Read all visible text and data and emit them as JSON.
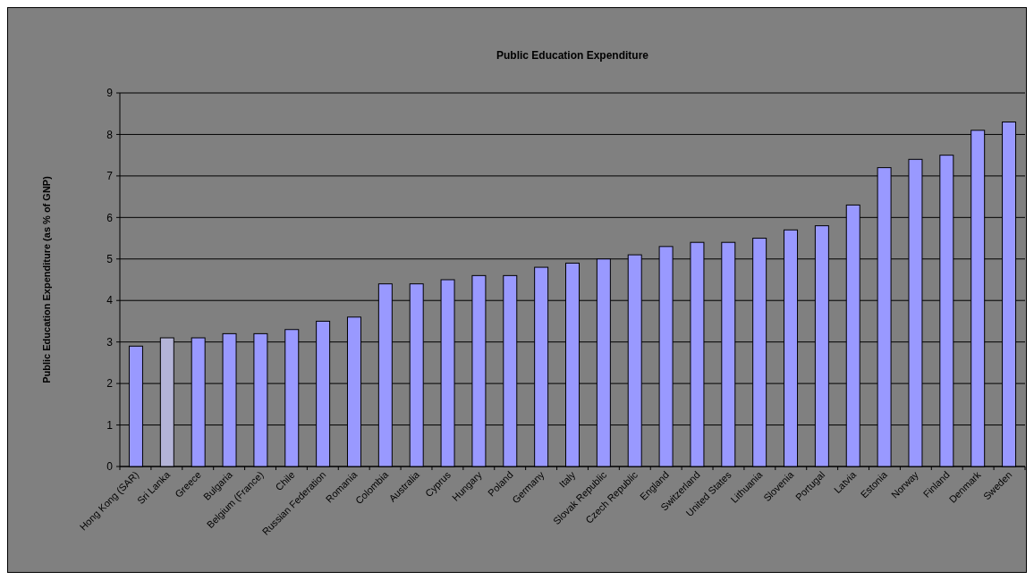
{
  "chart_data": {
    "type": "bar",
    "title": "Public Education Expenditure",
    "ylabel": "Public Education Expenditure (as % of GNP)",
    "categories": [
      "Hong Kong (SAR)",
      "Sri Lanka",
      "Greece",
      "Bulgaria",
      "Belgium (France)",
      "Chile",
      "Russian Federation",
      "Romania",
      "Colombia",
      "Australia",
      "Cyprus",
      "Hungary",
      "Poland",
      "Germany",
      "Italy",
      "Slovak Republic",
      "Czech Republic",
      "England",
      "Switzerland",
      "United States",
      "Lithuania",
      "Slovenia",
      "Portugal",
      "Latvia",
      "Estonia",
      "Norway",
      "Finland",
      "Denmark",
      "Sweden"
    ],
    "values": [
      2.9,
      3.1,
      3.1,
      3.2,
      3.2,
      3.3,
      3.5,
      3.6,
      4.4,
      4.4,
      4.5,
      4.6,
      4.6,
      4.8,
      4.9,
      5.0,
      5.1,
      5.3,
      5.4,
      5.4,
      5.5,
      5.7,
      5.8,
      6.3,
      7.2,
      7.4,
      7.5,
      8.1,
      8.3
    ],
    "colors": [
      "#9999ff",
      "#b4b4d8",
      "#9999ff",
      "#9999ff",
      "#9999ff",
      "#9999ff",
      "#9999ff",
      "#9999ff",
      "#9999ff",
      "#9999ff",
      "#9999ff",
      "#9999ff",
      "#9999ff",
      "#9999ff",
      "#9999ff",
      "#9999ff",
      "#9999ff",
      "#9999ff",
      "#9999ff",
      "#9999ff",
      "#9999ff",
      "#9999ff",
      "#9999ff",
      "#9999ff",
      "#9999ff",
      "#9999ff",
      "#9999ff",
      "#9999ff",
      "#9999ff"
    ],
    "ylim": [
      0,
      9
    ],
    "yticks": [
      0,
      1,
      2,
      3,
      4,
      5,
      6,
      7,
      8,
      9
    ],
    "grid": true
  }
}
